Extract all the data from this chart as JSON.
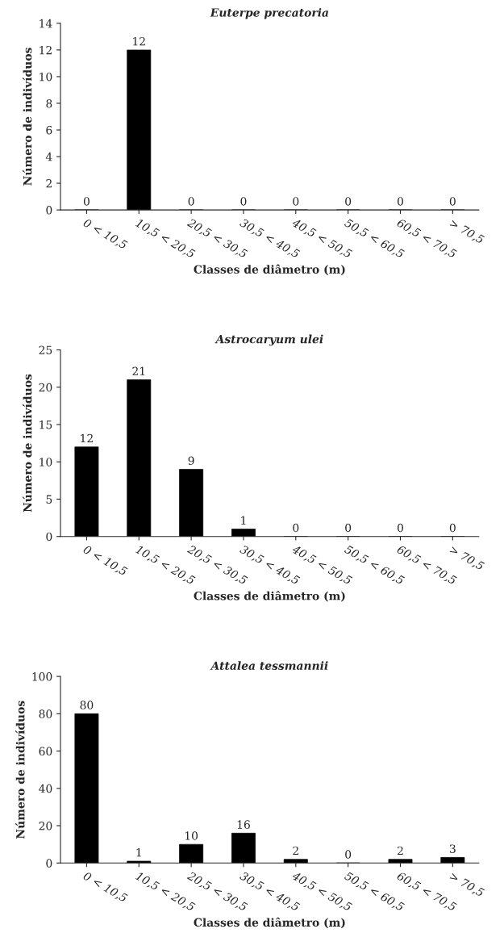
{
  "chart_data": [
    {
      "type": "bar",
      "title": "Euterpe precatoria",
      "xlabel": "Classes de diâmetro (m)",
      "ylabel": "Número de indivíduos",
      "categories": [
        "0 < 10,5",
        "10,5 < 20,5",
        "20,5 < 30,5",
        "30,5 < 40,5",
        "40,5 < 50,5",
        "50,5 < 60,5",
        "60,5 < 70,5",
        "> 70,5"
      ],
      "values": [
        0,
        12,
        0,
        0,
        0,
        0,
        0,
        0
      ],
      "color": "#000000",
      "ylim": [
        0,
        14
      ],
      "yticks": [
        0,
        2,
        4,
        6,
        8,
        10,
        12,
        14
      ],
      "data_labels": true,
      "grid": false,
      "legend": false
    },
    {
      "type": "bar",
      "title": "Astrocaryum ulei",
      "xlabel": "Classes de diâmetro (m)",
      "ylabel": "Número de indivíduos",
      "categories": [
        "0 < 10,5",
        "10,5 < 20,5",
        "20,5 < 30,5",
        "30,5 < 40,5",
        "40,5 < 50,5",
        "50,5 < 60,5",
        "60,5 < 70,5",
        "> 70,5"
      ],
      "values": [
        12,
        21,
        9,
        1,
        0,
        0,
        0,
        0
      ],
      "color": "#000000",
      "ylim": [
        0,
        25
      ],
      "yticks": [
        0,
        5,
        10,
        15,
        20,
        25
      ],
      "data_labels": true,
      "grid": false,
      "legend": false
    },
    {
      "type": "bar",
      "title": "Attalea tessmannii",
      "xlabel": "Classes de diâmetro (m)",
      "ylabel": "Número de indivíduos",
      "categories": [
        "0 < 10,5",
        "10,5 < 20,5",
        "20,5 < 30,5",
        "30,5 < 40,5",
        "40,5 < 50,5",
        "50,5 < 60,5",
        "60,5 < 70,5",
        "> 70,5"
      ],
      "values": [
        80,
        1,
        10,
        16,
        2,
        0,
        2,
        3
      ],
      "color": "#000000",
      "ylim": [
        0,
        100
      ],
      "yticks": [
        0,
        20,
        40,
        60,
        80,
        100
      ],
      "data_labels": true,
      "grid": false,
      "legend": false
    }
  ]
}
